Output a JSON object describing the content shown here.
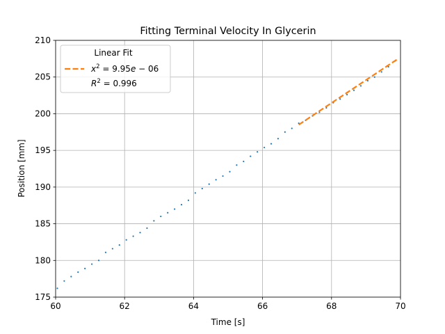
{
  "chart_data": {
    "type": "scatter",
    "title": "Fitting Terminal Velocity In Glycerin",
    "xlabel": "Time [s]",
    "ylabel": "Position [mm]",
    "xlim": [
      60,
      70
    ],
    "ylim": [
      175,
      210
    ],
    "xticks": [
      60,
      62,
      64,
      66,
      68,
      70
    ],
    "yticks": [
      175,
      180,
      185,
      190,
      195,
      200,
      205,
      210
    ],
    "grid": true,
    "legend": {
      "placement": "upper-left",
      "title": "Linear Fit",
      "entries": [
        "x^2 = 9.95e-06",
        "R^2 = 0.996"
      ]
    },
    "series": [
      {
        "kind": "scatter",
        "color": "#1f77b4",
        "x": [
          60.05,
          60.25,
          60.45,
          60.65,
          60.85,
          61.05,
          61.25,
          61.45,
          61.65,
          61.85,
          62.05,
          62.25,
          62.45,
          62.65,
          62.85,
          63.05,
          63.25,
          63.45,
          63.65,
          63.85,
          64.05,
          64.25,
          64.45,
          64.65,
          64.85,
          65.05,
          65.25,
          65.45,
          65.65,
          65.85,
          66.05,
          66.25,
          66.45,
          66.65,
          66.85,
          67.05,
          67.25,
          67.45,
          67.65,
          67.85,
          68.05,
          68.25,
          68.45,
          68.65,
          68.85,
          69.05,
          69.25,
          69.45,
          69.65,
          69.85
        ],
        "y": [
          176.2,
          177.2,
          177.8,
          178.4,
          178.9,
          179.5,
          180.0,
          181.1,
          181.6,
          182.1,
          182.8,
          183.3,
          183.8,
          184.4,
          185.4,
          186.0,
          186.5,
          187.0,
          187.6,
          188.2,
          189.2,
          189.8,
          190.4,
          191.0,
          191.5,
          192.1,
          193.0,
          193.5,
          194.2,
          194.8,
          195.4,
          195.9,
          196.6,
          197.5,
          198.0,
          198.7,
          199.1,
          199.7,
          200.2,
          200.8,
          201.5,
          202.0,
          202.6,
          203.2,
          203.8,
          204.5,
          205.0,
          205.7,
          206.4,
          207.2
        ]
      },
      {
        "kind": "line",
        "style": "dashed",
        "color": "#ff7f0e",
        "x": [
          67.05,
          69.9
        ],
        "y": [
          198.5,
          207.4
        ]
      }
    ]
  }
}
